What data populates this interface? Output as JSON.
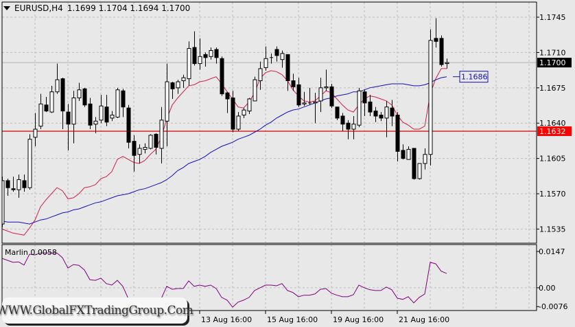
{
  "header": {
    "symbol": "EURUSD,H4",
    "ohlc": "1.1699 1.1704 1.1694 1.1700"
  },
  "indicator_label": "Marlin 0.0058",
  "watermark": "WWW.GlobalFXTradingGroup.Com",
  "colors": {
    "background": "#e8e8e8",
    "grid": "#bdbdbd",
    "fast_ma": "#d21e46",
    "slow_ma": "#1010b4",
    "marlin": "#800080",
    "level_line": "#d00000",
    "level_label_bg": "#ff0000",
    "price_label_bg": "#000000"
  },
  "chart_data": [
    {
      "type": "candlestick",
      "symbol": "EURUSD",
      "timeframe": "H4",
      "ylim": [
        1.1521,
        1.176
      ],
      "yticks": [
        "1.1745",
        "1.1710",
        "1.1675",
        "1.1640",
        "1.1605",
        "1.1570",
        "1.1535"
      ],
      "grid": true,
      "time_labels": [
        {
          "index": 36,
          "label": "13 Aug 16:00"
        },
        {
          "index": 48,
          "label": "15 Aug 16:00"
        },
        {
          "index": 60,
          "label": "19 Aug 16:00"
        },
        {
          "index": 72,
          "label": "21 Aug 16:00"
        }
      ],
      "candles_ohlc": [
        [
          1.154,
          1.1587,
          1.1537,
          1.1583
        ],
        [
          1.1583,
          1.1585,
          1.1568,
          1.1576
        ],
        [
          1.1575,
          1.1587,
          1.1572,
          1.1574
        ],
        [
          1.1574,
          1.1589,
          1.1566,
          1.1584
        ],
        [
          1.1583,
          1.1589,
          1.1572,
          1.1576
        ],
        [
          1.1576,
          1.1629,
          1.1574,
          1.1624
        ],
        [
          1.1626,
          1.165,
          1.1617,
          1.1634
        ],
        [
          1.1637,
          1.1669,
          1.1634,
          1.1659
        ],
        [
          1.1658,
          1.1666,
          1.1651,
          1.1652
        ],
        [
          1.1651,
          1.1677,
          1.165,
          1.1671
        ],
        [
          1.1671,
          1.1699,
          1.1669,
          1.1683
        ],
        [
          1.1684,
          1.1685,
          1.1634,
          1.1652
        ],
        [
          1.1651,
          1.1659,
          1.1613,
          1.1639
        ],
        [
          1.1639,
          1.1672,
          1.162,
          1.1665
        ],
        [
          1.1665,
          1.168,
          1.1662,
          1.1673
        ],
        [
          1.1674,
          1.1675,
          1.1656,
          1.1658
        ],
        [
          1.1659,
          1.1665,
          1.1634,
          1.1638
        ],
        [
          1.1639,
          1.1646,
          1.163,
          1.1642
        ],
        [
          1.1643,
          1.1668,
          1.164,
          1.1657
        ],
        [
          1.1656,
          1.1668,
          1.1637,
          1.1641
        ],
        [
          1.1645,
          1.1652,
          1.1642,
          1.1648
        ],
        [
          1.1646,
          1.1675,
          1.1645,
          1.1673
        ],
        [
          1.1672,
          1.1674,
          1.1646,
          1.1656
        ],
        [
          1.1655,
          1.1658,
          1.1615,
          1.1621
        ],
        [
          1.1622,
          1.1628,
          1.1592,
          1.1608
        ],
        [
          1.1609,
          1.1619,
          1.16,
          1.1615
        ],
        [
          1.1614,
          1.162,
          1.161,
          1.1616
        ],
        [
          1.1615,
          1.1629,
          1.1614,
          1.1628
        ],
        [
          1.1629,
          1.163,
          1.1609,
          1.1616
        ],
        [
          1.1615,
          1.1656,
          1.16,
          1.1643
        ],
        [
          1.1642,
          1.1699,
          1.1617,
          1.1681
        ],
        [
          1.168,
          1.1681,
          1.1664,
          1.1674
        ],
        [
          1.1675,
          1.1683,
          1.1669,
          1.1681
        ],
        [
          1.1682,
          1.1688,
          1.1675,
          1.1685
        ],
        [
          1.1684,
          1.1721,
          1.1677,
          1.1714
        ],
        [
          1.1715,
          1.1731,
          1.1697,
          1.1699
        ],
        [
          1.1699,
          1.1724,
          1.1693,
          1.1706
        ],
        [
          1.1708,
          1.171,
          1.1696,
          1.1705
        ],
        [
          1.1706,
          1.1715,
          1.1703,
          1.1712
        ],
        [
          1.1713,
          1.1715,
          1.1699,
          1.1705
        ],
        [
          1.1704,
          1.1706,
          1.1667,
          1.1669
        ],
        [
          1.167,
          1.1671,
          1.165,
          1.1664
        ],
        [
          1.1665,
          1.1672,
          1.1631,
          1.1634
        ],
        [
          1.1634,
          1.1651,
          1.1632,
          1.1647
        ],
        [
          1.1648,
          1.1655,
          1.1645,
          1.1653
        ],
        [
          1.1652,
          1.1665,
          1.1649,
          1.1664
        ],
        [
          1.1662,
          1.1686,
          1.1662,
          1.1683
        ],
        [
          1.1682,
          1.1701,
          1.1673,
          1.1694
        ],
        [
          1.1695,
          1.1716,
          1.1692,
          1.1704
        ],
        [
          1.1705,
          1.1709,
          1.1699,
          1.1705
        ],
        [
          1.1713,
          1.1716,
          1.1701,
          1.1707
        ],
        [
          1.1703,
          1.1712,
          1.1695,
          1.1709
        ],
        [
          1.1708,
          1.1708,
          1.1672,
          1.1682
        ],
        [
          1.1682,
          1.1689,
          1.1672,
          1.1676
        ],
        [
          1.1678,
          1.1685,
          1.1656,
          1.1658
        ],
        [
          1.1659,
          1.1671,
          1.1657,
          1.166
        ],
        [
          1.166,
          1.1675,
          1.1658,
          1.166
        ],
        [
          1.166,
          1.167,
          1.164,
          1.1661
        ],
        [
          1.1662,
          1.1685,
          1.1651,
          1.1675
        ],
        [
          1.1675,
          1.1693,
          1.1672,
          1.1676
        ],
        [
          1.1676,
          1.1679,
          1.1655,
          1.1657
        ],
        [
          1.1656,
          1.1656,
          1.1643,
          1.1645
        ],
        [
          1.1647,
          1.165,
          1.1632,
          1.1639
        ],
        [
          1.164,
          1.1643,
          1.1624,
          1.1634
        ],
        [
          1.1634,
          1.1647,
          1.1624,
          1.1639
        ],
        [
          1.1638,
          1.1675,
          1.1636,
          1.1672
        ],
        [
          1.1671,
          1.1673,
          1.1647,
          1.166
        ],
        [
          1.1661,
          1.1668,
          1.1647,
          1.1651
        ],
        [
          1.1652,
          1.1656,
          1.1641,
          1.1647
        ],
        [
          1.1648,
          1.1651,
          1.1642,
          1.1645
        ],
        [
          1.1645,
          1.1662,
          1.1626,
          1.1656
        ],
        [
          1.1655,
          1.1663,
          1.1637,
          1.1647
        ],
        [
          1.1648,
          1.1651,
          1.1602,
          1.1612
        ],
        [
          1.1613,
          1.1619,
          1.1604,
          1.1605
        ],
        [
          1.1604,
          1.1617,
          1.1604,
          1.1614
        ],
        [
          1.1615,
          1.1615,
          1.1584,
          1.1585
        ],
        [
          1.1585,
          1.16,
          1.1584,
          1.16
        ],
        [
          1.16,
          1.1615,
          1.1594,
          1.1609
        ],
        [
          1.1609,
          1.1733,
          1.1598,
          1.1722
        ],
        [
          1.1724,
          1.1744,
          1.1715,
          1.1721
        ],
        [
          1.1724,
          1.1727,
          1.1696,
          1.1698
        ],
        [
          1.1699,
          1.1704,
          1.1694,
          1.17
        ]
      ],
      "series": [
        {
          "color": "#d21e46",
          "values": [
            1.1535,
            1.1533,
            1.1531,
            1.153,
            1.1529,
            1.1536,
            1.1544,
            1.1557,
            1.1564,
            1.157,
            1.1576,
            1.1573,
            1.1565,
            1.1566,
            1.157,
            1.1576,
            1.1577,
            1.1579,
            1.1585,
            1.1587,
            1.1592,
            1.1604,
            1.1607,
            1.1604,
            1.1601,
            1.16,
            1.1603,
            1.1609,
            1.1614,
            1.1626,
            1.1644,
            1.1658,
            1.1665,
            1.1671,
            1.1677,
            1.1678,
            1.1681,
            1.1682,
            1.1684,
            1.1686,
            1.1679,
            1.1671,
            1.1664,
            1.1656,
            1.1655,
            1.1661,
            1.167,
            1.1684,
            1.169,
            1.1692,
            1.1691,
            1.1688,
            1.1682,
            1.1673,
            1.1667,
            1.1662,
            1.1661,
            1.1662,
            1.1667,
            1.1672,
            1.167,
            1.1664,
            1.1658,
            1.1653,
            1.1651,
            1.1658,
            1.1664,
            1.1667,
            1.1666,
            1.1664,
            1.1662,
            1.1658,
            1.1648,
            1.1641,
            1.1638,
            1.1634,
            1.1634,
            1.1637,
            1.1669,
            1.1684,
            1.1694,
            1.1694
          ]
        },
        {
          "color": "#1010b4",
          "values": [
            1.1543,
            1.1542,
            1.1542,
            1.1542,
            1.1541,
            1.154,
            1.1542,
            1.1544,
            1.1545,
            1.1547,
            1.1549,
            1.1551,
            1.1552,
            1.1554,
            1.1555,
            1.1557,
            1.1559,
            1.1561,
            1.1562,
            1.1564,
            1.1566,
            1.1568,
            1.1569,
            1.157,
            1.1572,
            1.1574,
            1.1575,
            1.1577,
            1.1579,
            1.1581,
            1.1584,
            1.1588,
            1.1593,
            1.1596,
            1.16,
            1.1602,
            1.1604,
            1.1607,
            1.1611,
            1.1614,
            1.1617,
            1.1619,
            1.1621,
            1.1624,
            1.1626,
            1.1628,
            1.1631,
            1.1634,
            1.1638,
            1.1641,
            1.1645,
            1.1648,
            1.1651,
            1.1653,
            1.1654,
            1.1656,
            1.1658,
            1.166,
            1.1662,
            1.1664,
            1.1665,
            1.1667,
            1.1668,
            1.1669,
            1.1671,
            1.1671,
            1.1673,
            1.1675,
            1.1676,
            1.1677,
            1.1678,
            1.1679,
            1.1679,
            1.1679,
            1.1678,
            1.1677,
            1.1677,
            1.1678,
            1.168,
            1.1683,
            1.1685,
            1.1686
          ],
          "last_label": "1.1686"
        }
      ],
      "hlines": [
        {
          "value": 1.1632,
          "label": "1.1632",
          "color": "#d00000"
        }
      ],
      "current_price": {
        "value": 1.17,
        "label": "1.1700"
      }
    },
    {
      "type": "line",
      "name": "Marlin",
      "ylim": [
        -0.0092,
        0.0175
      ],
      "yticks": [
        {
          "value": 0.0147,
          "label": "0.0147"
        },
        {
          "value": 0.0,
          "label": "0.00"
        },
        {
          "value": -0.0076,
          "label": "-0.0076"
        }
      ],
      "color": "#800080",
      "values": [
        0.0119,
        0.0111,
        0.0103,
        0.0105,
        0.0092,
        0.0136,
        0.0133,
        0.0141,
        0.0141,
        0.0141,
        0.0141,
        0.0122,
        0.008,
        0.0094,
        0.0091,
        0.0072,
        0.0033,
        0.003,
        0.0039,
        0.0017,
        0.0011,
        0.003,
        0.0006,
        -0.0044,
        -0.0058,
        -0.0069,
        -0.0072,
        -0.0075,
        -0.0064,
        -0.0044,
        0.0006,
        -0.0006,
        -0.0003,
        -0.0003,
        0.0028,
        0.0006,
        0.0011,
        0.0006,
        0.0011,
        -0.0003,
        -0.0039,
        -0.005,
        -0.0078,
        -0.0058,
        -0.005,
        -0.0039,
        -0.0011,
        0.0,
        0.0011,
        0.0011,
        0.0008,
        0.0017,
        -0.0011,
        -0.0019,
        -0.0036,
        -0.003,
        -0.003,
        -0.0025,
        -0.0006,
        -0.0003,
        -0.0022,
        -0.003,
        -0.0036,
        -0.0036,
        -0.0028,
        0.0011,
        0.0,
        -0.0008,
        -0.0011,
        -0.0011,
        0.0003,
        -0.0008,
        -0.0042,
        -0.0047,
        -0.0036,
        -0.0061,
        -0.0039,
        -0.0025,
        0.0103,
        0.0097,
        0.0067,
        0.0058
      ]
    }
  ]
}
